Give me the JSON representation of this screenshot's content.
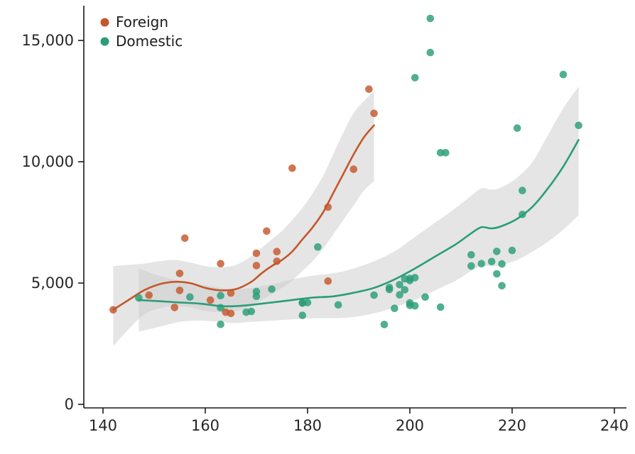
{
  "chart_data": {
    "type": "scatter",
    "title": "",
    "xlabel": "",
    "ylabel": "",
    "xlim": [
      140,
      240
    ],
    "ylim": [
      0,
      16000
    ],
    "grid": false,
    "legend_position": "top-left",
    "band_color": "#cbcbcb",
    "x_ticks": [
      140,
      160,
      180,
      200,
      220,
      240
    ],
    "y_ticks": [
      0,
      5000,
      10000,
      15000
    ],
    "y_tick_labels": [
      "0",
      "5,000",
      "10,000",
      "15,000"
    ],
    "series": [
      {
        "name": "Foreign",
        "color": "#c4572c",
        "points": [
          [
            142,
            3895
          ],
          [
            149,
            4499
          ],
          [
            154,
            3995
          ],
          [
            155,
            4697
          ],
          [
            155,
            5397
          ],
          [
            156,
            6850
          ],
          [
            161,
            4296
          ],
          [
            163,
            5799
          ],
          [
            164,
            3798
          ],
          [
            165,
            3748
          ],
          [
            165,
            4589
          ],
          [
            170,
            5719
          ],
          [
            170,
            6229
          ],
          [
            172,
            7140
          ],
          [
            174,
            5899
          ],
          [
            174,
            6295
          ],
          [
            177,
            9735
          ],
          [
            184,
            5079
          ],
          [
            184,
            8129
          ],
          [
            189,
            9690
          ],
          [
            192,
            12990
          ],
          [
            193,
            11995
          ]
        ],
        "trend": [
          [
            142,
            3900
          ],
          [
            145,
            4300
          ],
          [
            148,
            4700
          ],
          [
            151,
            4950
          ],
          [
            154,
            5050
          ],
          [
            157,
            5000
          ],
          [
            160,
            4800
          ],
          [
            163,
            4700
          ],
          [
            166,
            4750
          ],
          [
            169,
            5050
          ],
          [
            171,
            5400
          ],
          [
            173,
            5700
          ],
          [
            175,
            5950
          ],
          [
            177,
            6300
          ],
          [
            179,
            6800
          ],
          [
            181,
            7300
          ],
          [
            183,
            7900
          ],
          [
            185,
            8700
          ],
          [
            187,
            9500
          ],
          [
            189,
            10300
          ],
          [
            191,
            11000
          ],
          [
            193,
            11500
          ]
        ],
        "band": [
          [
            142,
            2400,
            5700
          ],
          [
            145,
            3100,
            5750
          ],
          [
            148,
            3700,
            5800
          ],
          [
            151,
            3950,
            5900
          ],
          [
            154,
            4050,
            5950
          ],
          [
            157,
            4000,
            5850
          ],
          [
            160,
            3850,
            5700
          ],
          [
            163,
            3800,
            5650
          ],
          [
            166,
            3850,
            5750
          ],
          [
            169,
            4050,
            6100
          ],
          [
            171,
            4300,
            6450
          ],
          [
            173,
            4550,
            6800
          ],
          [
            175,
            4800,
            7150
          ],
          [
            177,
            5100,
            7600
          ],
          [
            179,
            5500,
            8100
          ],
          [
            181,
            5900,
            8700
          ],
          [
            183,
            6400,
            9400
          ],
          [
            185,
            7000,
            10300
          ],
          [
            187,
            7600,
            11200
          ],
          [
            189,
            8200,
            12000
          ],
          [
            191,
            8800,
            12500
          ],
          [
            193,
            9200,
            12900
          ]
        ]
      },
      {
        "name": "Domestic",
        "color": "#2a9d78",
        "points": [
          [
            147,
            4389
          ],
          [
            157,
            4425
          ],
          [
            163,
            3299
          ],
          [
            163,
            3984
          ],
          [
            163,
            4482
          ],
          [
            168,
            3799
          ],
          [
            169,
            3829
          ],
          [
            170,
            4453
          ],
          [
            170,
            4647
          ],
          [
            173,
            4749
          ],
          [
            179,
            3667
          ],
          [
            179,
            4172
          ],
          [
            179,
            4187
          ],
          [
            180,
            4195
          ],
          [
            182,
            6486
          ],
          [
            186,
            4099
          ],
          [
            193,
            4504
          ],
          [
            195,
            3291
          ],
          [
            196,
            4733
          ],
          [
            196,
            4816
          ],
          [
            197,
            3955
          ],
          [
            198,
            4516
          ],
          [
            198,
            4934
          ],
          [
            199,
            4723
          ],
          [
            199,
            5172
          ],
          [
            200,
            4082
          ],
          [
            200,
            4181
          ],
          [
            200,
            5104
          ],
          [
            200,
            5189
          ],
          [
            201,
            4060
          ],
          [
            201,
            5222
          ],
          [
            201,
            13466
          ],
          [
            203,
            4424
          ],
          [
            204,
            14500
          ],
          [
            204,
            15906
          ],
          [
            206,
            4010
          ],
          [
            206,
            10371
          ],
          [
            207,
            10372
          ],
          [
            212,
            5705
          ],
          [
            212,
            6165
          ],
          [
            214,
            5798
          ],
          [
            216,
            5886
          ],
          [
            217,
            5379
          ],
          [
            217,
            6303
          ],
          [
            218,
            4890
          ],
          [
            218,
            5788
          ],
          [
            220,
            6342
          ],
          [
            221,
            11385
          ],
          [
            222,
            7827
          ],
          [
            222,
            8814
          ],
          [
            230,
            13594
          ],
          [
            233,
            11497
          ]
        ],
        "trend": [
          [
            147,
            4300
          ],
          [
            151,
            4250
          ],
          [
            155,
            4200
          ],
          [
            159,
            4150
          ],
          [
            163,
            4050
          ],
          [
            166,
            4050
          ],
          [
            169,
            4100
          ],
          [
            173,
            4200
          ],
          [
            177,
            4300
          ],
          [
            181,
            4400
          ],
          [
            185,
            4450
          ],
          [
            189,
            4600
          ],
          [
            193,
            4800
          ],
          [
            197,
            5150
          ],
          [
            201,
            5600
          ],
          [
            205,
            6100
          ],
          [
            209,
            6600
          ],
          [
            212,
            7050
          ],
          [
            214,
            7300
          ],
          [
            216,
            7250
          ],
          [
            218,
            7350
          ],
          [
            221,
            7650
          ],
          [
            224,
            8150
          ],
          [
            227,
            8900
          ],
          [
            230,
            9800
          ],
          [
            233,
            10900
          ]
        ],
        "band": [
          [
            147,
            3000,
            5600
          ],
          [
            151,
            3200,
            5300
          ],
          [
            155,
            3400,
            5100
          ],
          [
            159,
            3450,
            4950
          ],
          [
            163,
            3400,
            4800
          ],
          [
            166,
            3350,
            4750
          ],
          [
            169,
            3400,
            4800
          ],
          [
            173,
            3450,
            4950
          ],
          [
            177,
            3500,
            5150
          ],
          [
            181,
            3550,
            5300
          ],
          [
            185,
            3550,
            5400
          ],
          [
            189,
            3600,
            5600
          ],
          [
            193,
            3750,
            5900
          ],
          [
            197,
            4000,
            6300
          ],
          [
            201,
            4300,
            6900
          ],
          [
            205,
            4700,
            7500
          ],
          [
            209,
            5100,
            8100
          ],
          [
            212,
            5500,
            8600
          ],
          [
            214,
            5700,
            8900
          ],
          [
            216,
            5700,
            8850
          ],
          [
            218,
            5750,
            8950
          ],
          [
            221,
            5950,
            9350
          ],
          [
            224,
            6300,
            10000
          ],
          [
            227,
            6700,
            11100
          ],
          [
            230,
            7200,
            12200
          ],
          [
            233,
            7800,
            13100
          ]
        ]
      }
    ]
  },
  "legend": {
    "foreign_label": "Foreign",
    "domestic_label": "Domestic"
  }
}
